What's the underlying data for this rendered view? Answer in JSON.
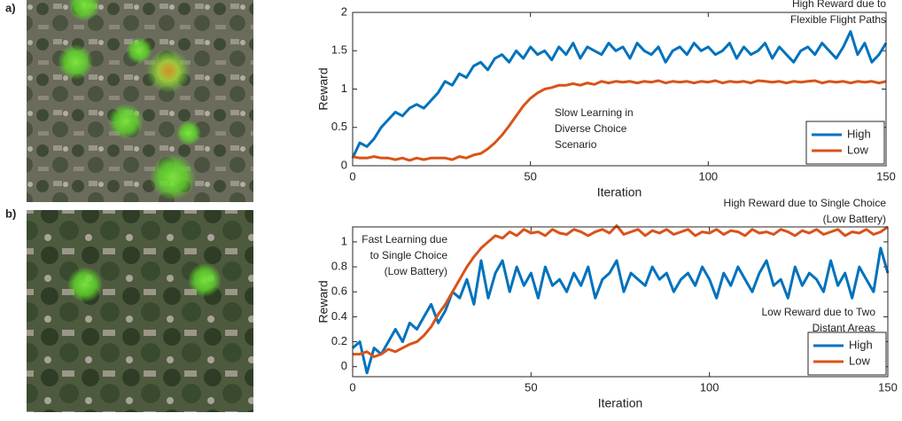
{
  "chart_data": [
    {
      "type": "line",
      "panel_label": "a)",
      "xlabel": "Iteration",
      "ylabel": "Reward",
      "xlim": [
        0,
        150
      ],
      "xticks": [
        0,
        50,
        100,
        150
      ],
      "ylim": [
        0,
        2
      ],
      "yticks": [
        0,
        0.5,
        1,
        1.5,
        2
      ],
      "legend": "lower right",
      "x": [
        0,
        2,
        4,
        6,
        8,
        10,
        12,
        14,
        16,
        18,
        20,
        22,
        24,
        26,
        28,
        30,
        32,
        34,
        36,
        38,
        40,
        42,
        44,
        46,
        48,
        50,
        52,
        54,
        56,
        58,
        60,
        62,
        64,
        66,
        68,
        70,
        72,
        74,
        76,
        78,
        80,
        82,
        84,
        86,
        88,
        90,
        92,
        94,
        96,
        98,
        100,
        102,
        104,
        106,
        108,
        110,
        112,
        114,
        116,
        118,
        120,
        122,
        124,
        126,
        128,
        130,
        132,
        134,
        136,
        138,
        140,
        142,
        144,
        146,
        148,
        150
      ],
      "series": [
        {
          "name": "High",
          "color": "#0072bd",
          "values": [
            0.1,
            0.3,
            0.25,
            0.35,
            0.5,
            0.6,
            0.7,
            0.65,
            0.75,
            0.8,
            0.75,
            0.85,
            0.95,
            1.1,
            1.05,
            1.2,
            1.15,
            1.3,
            1.35,
            1.25,
            1.4,
            1.45,
            1.35,
            1.5,
            1.4,
            1.55,
            1.45,
            1.5,
            1.38,
            1.55,
            1.45,
            1.6,
            1.4,
            1.55,
            1.5,
            1.45,
            1.6,
            1.5,
            1.55,
            1.4,
            1.6,
            1.5,
            1.45,
            1.55,
            1.35,
            1.5,
            1.55,
            1.45,
            1.6,
            1.5,
            1.55,
            1.45,
            1.5,
            1.6,
            1.4,
            1.55,
            1.45,
            1.5,
            1.6,
            1.4,
            1.55,
            1.45,
            1.35,
            1.5,
            1.55,
            1.45,
            1.6,
            1.5,
            1.4,
            1.55,
            1.75,
            1.45,
            1.6,
            1.35,
            1.45,
            1.6
          ]
        },
        {
          "name": "Low",
          "color": "#d95319",
          "values": [
            0.12,
            0.1,
            0.1,
            0.12,
            0.1,
            0.1,
            0.08,
            0.1,
            0.07,
            0.1,
            0.08,
            0.1,
            0.1,
            0.1,
            0.08,
            0.12,
            0.1,
            0.14,
            0.16,
            0.22,
            0.3,
            0.4,
            0.52,
            0.65,
            0.78,
            0.88,
            0.95,
            1.0,
            1.02,
            1.05,
            1.05,
            1.07,
            1.05,
            1.08,
            1.06,
            1.1,
            1.08,
            1.1,
            1.09,
            1.1,
            1.08,
            1.1,
            1.09,
            1.11,
            1.08,
            1.1,
            1.09,
            1.1,
            1.08,
            1.1,
            1.09,
            1.11,
            1.08,
            1.1,
            1.09,
            1.1,
            1.08,
            1.11,
            1.1,
            1.09,
            1.1,
            1.08,
            1.1,
            1.09,
            1.1,
            1.11,
            1.08,
            1.1,
            1.09,
            1.1,
            1.08,
            1.1,
            1.09,
            1.1,
            1.08,
            1.1
          ]
        }
      ],
      "annotations": [
        {
          "lines": [
            "High Reward due to",
            "Flexible Flight Paths"
          ],
          "color": "#4472c4"
        },
        {
          "lines": [
            "Slow Learning in",
            "Diverse Choice",
            "Scenario"
          ],
          "color": "#c55a11"
        }
      ]
    },
    {
      "type": "line",
      "panel_label": "b)",
      "xlabel": "Iteration",
      "ylabel": "Reward",
      "xlim": [
        0,
        150
      ],
      "xticks": [
        0,
        50,
        100,
        150
      ],
      "ylim": [
        -0.08,
        1.12
      ],
      "yticks": [
        0,
        0.2,
        0.4,
        0.6,
        0.8,
        1
      ],
      "legend": "lower right",
      "x": [
        0,
        2,
        4,
        6,
        8,
        10,
        12,
        14,
        16,
        18,
        20,
        22,
        24,
        26,
        28,
        30,
        32,
        34,
        36,
        38,
        40,
        42,
        44,
        46,
        48,
        50,
        52,
        54,
        56,
        58,
        60,
        62,
        64,
        66,
        68,
        70,
        72,
        74,
        76,
        78,
        80,
        82,
        84,
        86,
        88,
        90,
        92,
        94,
        96,
        98,
        100,
        102,
        104,
        106,
        108,
        110,
        112,
        114,
        116,
        118,
        120,
        122,
        124,
        126,
        128,
        130,
        132,
        134,
        136,
        138,
        140,
        142,
        144,
        146,
        148,
        150
      ],
      "series": [
        {
          "name": "High",
          "color": "#0072bd",
          "values": [
            0.15,
            0.2,
            -0.05,
            0.15,
            0.1,
            0.2,
            0.3,
            0.2,
            0.35,
            0.3,
            0.4,
            0.5,
            0.35,
            0.45,
            0.6,
            0.55,
            0.7,
            0.5,
            0.85,
            0.55,
            0.75,
            0.85,
            0.6,
            0.8,
            0.65,
            0.75,
            0.55,
            0.8,
            0.65,
            0.7,
            0.6,
            0.75,
            0.65,
            0.8,
            0.55,
            0.7,
            0.75,
            0.85,
            0.6,
            0.75,
            0.7,
            0.65,
            0.8,
            0.7,
            0.75,
            0.6,
            0.7,
            0.75,
            0.65,
            0.8,
            0.7,
            0.55,
            0.75,
            0.65,
            0.8,
            0.7,
            0.6,
            0.75,
            0.85,
            0.65,
            0.7,
            0.55,
            0.8,
            0.65,
            0.75,
            0.7,
            0.6,
            0.85,
            0.65,
            0.75,
            0.55,
            0.8,
            0.7,
            0.6,
            0.95,
            0.75
          ]
        },
        {
          "name": "Low",
          "color": "#d95319",
          "values": [
            0.1,
            0.1,
            0.12,
            0.08,
            0.1,
            0.14,
            0.12,
            0.15,
            0.18,
            0.2,
            0.25,
            0.32,
            0.42,
            0.5,
            0.6,
            0.7,
            0.8,
            0.88,
            0.95,
            1.0,
            1.05,
            1.03,
            1.08,
            1.05,
            1.1,
            1.07,
            1.08,
            1.05,
            1.1,
            1.07,
            1.06,
            1.1,
            1.08,
            1.05,
            1.08,
            1.1,
            1.07,
            1.13,
            1.06,
            1.08,
            1.1,
            1.05,
            1.09,
            1.07,
            1.1,
            1.06,
            1.08,
            1.1,
            1.05,
            1.08,
            1.07,
            1.1,
            1.06,
            1.09,
            1.08,
            1.05,
            1.1,
            1.07,
            1.08,
            1.06,
            1.1,
            1.08,
            1.05,
            1.09,
            1.07,
            1.1,
            1.06,
            1.08,
            1.1,
            1.05,
            1.08,
            1.07,
            1.1,
            1.06,
            1.08,
            1.12
          ]
        }
      ],
      "annotations": [
        {
          "lines": [
            "High Reward due to Single Choice",
            "(Low Battery)"
          ],
          "color": "#c55a11"
        },
        {
          "lines": [
            "Fast Learning due",
            "to Single Choice",
            "(Low Battery)"
          ],
          "color": "#c55a11"
        },
        {
          "lines": [
            "Low Reward due to Two",
            "Distant Areas"
          ],
          "color": "#4472c4"
        }
      ]
    }
  ]
}
